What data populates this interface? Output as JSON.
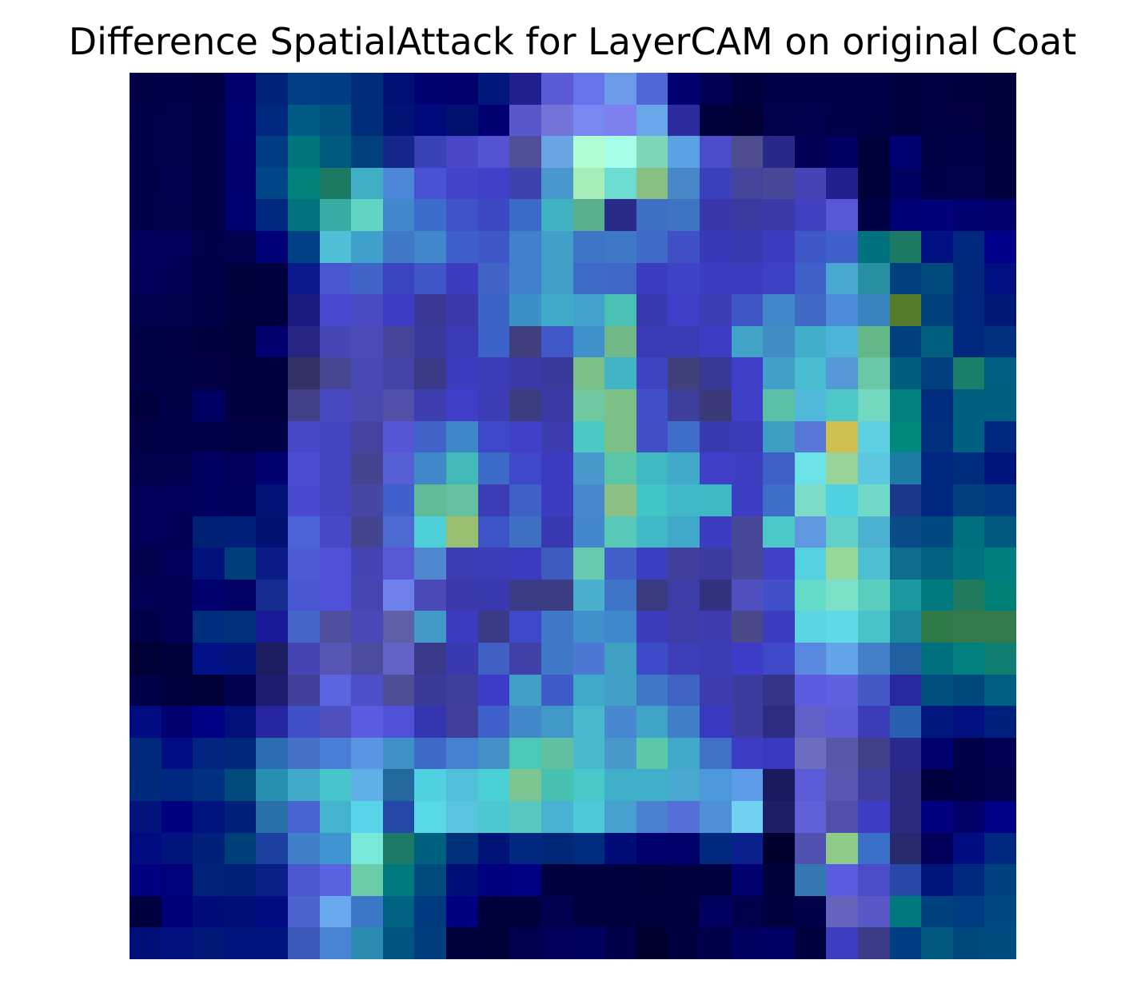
{
  "chart_data": {
    "type": "heatmap",
    "title": "Difference SpatialAttack for LayerCAM on original Coat",
    "xlabel": "",
    "ylabel": "",
    "axes_visible": false,
    "rows": 28,
    "cols": 28,
    "cells": [
      [
        "#000047",
        "#00004a",
        "#000042",
        "#000070",
        "#00237a",
        "#003f84",
        "#003d82",
        "#002c7a",
        "#000f75",
        "#000073",
        "#00006e",
        "#00197a",
        "#1f1f8f",
        "#5b5bd6",
        "#6575ea",
        "#6a9ae8",
        "#4e67d4",
        "#000070",
        "#000054",
        "#00003e",
        "#000048",
        "#00004a",
        "#00004a",
        "#000048",
        "#00003f",
        "#000043",
        "#000040",
        "#00003b"
      ],
      [
        "#00004a",
        "#00004d",
        "#000044",
        "#000073",
        "#00287e",
        "#005b85",
        "#005080",
        "#002d7a",
        "#001273",
        "#000a7d",
        "#00116f",
        "#000072",
        "#5858cc",
        "#7474d8",
        "#7788f2",
        "#7e80f0",
        "#69a6ec",
        "#2c2c9e",
        "#00003d",
        "#000034",
        "#00004c",
        "#000050",
        "#00004a",
        "#000046",
        "#00003f",
        "#000042",
        "#000042",
        "#00003b"
      ],
      [
        "#00004b",
        "#00004e",
        "#000044",
        "#000071",
        "#003d84",
        "#00757e",
        "#005a7e",
        "#00407c",
        "#14288c",
        "#3a42b8",
        "#4a48c8",
        "#5454d2",
        "#50509a",
        "#6aa4e4",
        "#b0ffd4",
        "#a6ffe8",
        "#7ed6b8",
        "#5aa2e2",
        "#4c4ccc",
        "#4c4c8e",
        "#282888",
        "#000054",
        "#000063",
        "#00003b",
        "#000074",
        "#000047",
        "#00004b",
        "#00003e"
      ],
      [
        "#00004b",
        "#000050",
        "#000044",
        "#000070",
        "#00478a",
        "#00817a",
        "#1c7a62",
        "#40aec4",
        "#4c88d8",
        "#4852d2",
        "#4444c8",
        "#4040c8",
        "#3e42b0",
        "#4898ce",
        "#a6ecb8",
        "#6cdcd0",
        "#88c084",
        "#4888c8",
        "#3c40be",
        "#44449a",
        "#484898",
        "#4444b6",
        "#20208e",
        "#00003a",
        "#000060",
        "#00004a",
        "#00004c",
        "#00003f"
      ],
      [
        "#00004b",
        "#00004f",
        "#000044",
        "#000073",
        "#00287e",
        "#00737e",
        "#38aca4",
        "#62d4c4",
        "#4288cc",
        "#3c6ccc",
        "#3e54c8",
        "#3c48c4",
        "#3c6ac8",
        "#3eb2c0",
        "#5ab08e",
        "#2a2a88",
        "#3e6ec6",
        "#3e72c2",
        "#3838ac",
        "#3a3aa2",
        "#3a3aa8",
        "#4040c0",
        "#5858d6",
        "#000045",
        "#000076",
        "#000078",
        "#000072",
        "#00006a"
      ],
      [
        "#00005c",
        "#000058",
        "#00004a",
        "#00004e",
        "#000077",
        "#004186",
        "#50bed4",
        "#40a0cc",
        "#4078c8",
        "#4286cc",
        "#3e5ecc",
        "#3e58c8",
        "#4080cc",
        "#40a0c8",
        "#4074c8",
        "#4078c8",
        "#406ac8",
        "#4050c6",
        "#3838b8",
        "#3a3ab0",
        "#3c3cc0",
        "#3e58c8",
        "#4060cc",
        "#00727e",
        "#1c7a64",
        "#001281",
        "#00287e",
        "#00008a"
      ],
      [
        "#000058",
        "#000054",
        "#000049",
        "#00003d",
        "#000041",
        "#0a1a8c",
        "#4858d0",
        "#4064c8",
        "#3c44c2",
        "#3e56c6",
        "#3c3cc0",
        "#4064c8",
        "#4080cc",
        "#40a0c8",
        "#406ac8",
        "#4068c8",
        "#3c3cc0",
        "#3e44c4",
        "#3c3cc0",
        "#3c3cc0",
        "#3e40c4",
        "#3e60c8",
        "#48a6d0",
        "#2890a0",
        "#00407e",
        "#004a7e",
        "#00287c",
        "#001080"
      ],
      [
        "#000050",
        "#00004f",
        "#000046",
        "#00003e",
        "#00003e",
        "#1a1a80",
        "#4848d0",
        "#4a4ac2",
        "#3c3cc4",
        "#383894",
        "#3a3aac",
        "#3c64c8",
        "#3c90c8",
        "#3eaac8",
        "#40a2cc",
        "#4ac0b4",
        "#3a3ab0",
        "#3e3ec8",
        "#3c3cb4",
        "#3e56c6",
        "#4088c8",
        "#4068c4",
        "#4c8cda",
        "#3a84c0",
        "#567a2c",
        "#00427e",
        "#00287e",
        "#001878"
      ],
      [
        "#000044",
        "#000042",
        "#000040",
        "#00003d",
        "#000071",
        "#262680",
        "#4646b6",
        "#4c4cb8",
        "#444498",
        "#3a3a9c",
        "#3a3ab4",
        "#3c64c8",
        "#40407e",
        "#4058c8",
        "#4090cc",
        "#70b888",
        "#3a3ab6",
        "#3a3ab4",
        "#3c3cc4",
        "#40a2c4",
        "#408cc4",
        "#40aec8",
        "#4cb4d8",
        "#64b888",
        "#004080",
        "#00607e",
        "#00287e",
        "#00307e"
      ],
      [
        "#000046",
        "#000044",
        "#000042",
        "#00003e",
        "#000040",
        "#323266",
        "#464694",
        "#4848b2",
        "#4242a8",
        "#3a3a88",
        "#3c3cc0",
        "#3c3cb8",
        "#3a3aa8",
        "#3a3a9c",
        "#7cc088",
        "#40b4c4",
        "#3e44c0",
        "#40407a",
        "#383896",
        "#3e3ec8",
        "#40a0c8",
        "#48bcd0",
        "#5498d8",
        "#6ac8a8",
        "#005d7e",
        "#00407e",
        "#1a7f6a",
        "#005f80"
      ],
      [
        "#000040",
        "#000046",
        "#000064",
        "#000040",
        "#00003f",
        "#40408a",
        "#4848c0",
        "#4848b0",
        "#5050a8",
        "#3e3eb0",
        "#3e3ec8",
        "#3c3cb4",
        "#3c3c80",
        "#3a3aa4",
        "#70c8a0",
        "#7cc088",
        "#4050c8",
        "#3e3e9c",
        "#3a3a78",
        "#3e3ec8",
        "#5cc0a8",
        "#50b8d8",
        "#4cc8c8",
        "#72d8c0",
        "#00807e",
        "#002c7e",
        "#00607e",
        "#006080"
      ],
      [
        "#000046",
        "#000049",
        "#00004a",
        "#000046",
        "#000046",
        "#4848c8",
        "#4444c0",
        "#4444a0",
        "#5656d4",
        "#4064c8",
        "#3e88c8",
        "#3e48c8",
        "#4040c8",
        "#3c3cb0",
        "#4cc8c4",
        "#7cc088",
        "#4050c4",
        "#3e6ec8",
        "#3a3ab0",
        "#3a3ab8",
        "#3e9ec4",
        "#5878d8",
        "#d0c050",
        "#5cd0e0",
        "#00887e",
        "#00307e",
        "#006080",
        "#002880"
      ],
      [
        "#00004c",
        "#00004f",
        "#000063",
        "#00005a",
        "#000073",
        "#4c4cd0",
        "#4444c0",
        "#444490",
        "#5660d4",
        "#4088c8",
        "#42b8b8",
        "#3c6ac8",
        "#3e48c8",
        "#3c3cc0",
        "#4898cc",
        "#58c4a8",
        "#40b8c4",
        "#40a8c8",
        "#3e3ec8",
        "#3e3ec0",
        "#3e60c8",
        "#6ae2e8",
        "#98d498",
        "#5cc8e0",
        "#1c7ca4",
        "#002880",
        "#002c7e",
        "#00147e"
      ],
      [
        "#000059",
        "#000058",
        "#000061",
        "#00005e",
        "#001276",
        "#4a4ad0",
        "#4444c0",
        "#4646a4",
        "#4060cc",
        "#60bc98",
        "#64c0a0",
        "#3c3cb6",
        "#3e60c8",
        "#3c3cc0",
        "#4888cc",
        "#8cc084",
        "#40c4c8",
        "#40b8c8",
        "#40b8c4",
        "#3e3ec4",
        "#3e6ec8",
        "#7cdcc8",
        "#50d0e0",
        "#72d8c8",
        "#1c388c",
        "#002880",
        "#00407e",
        "#003a80"
      ],
      [
        "#000058",
        "#000057",
        "#002076",
        "#00207a",
        "#001271",
        "#4c64d8",
        "#4848c8",
        "#444490",
        "#4c6cd4",
        "#4ecfd8",
        "#98c070",
        "#3c54c8",
        "#3e70c4",
        "#3838b0",
        "#4488cc",
        "#58c8b8",
        "#40b8c8",
        "#40a8c8",
        "#3c3cc0",
        "#484898",
        "#4cc8c8",
        "#6098e0",
        "#60d0c8",
        "#4cb0d0",
        "#0a4c88",
        "#004880",
        "#00707e",
        "#005880"
      ],
      [
        "#00004e",
        "#00005a",
        "#00127c",
        "#00407a",
        "#0a1c88",
        "#4c5cd4",
        "#5050d8",
        "#4444b4",
        "#5858d4",
        "#5088d0",
        "#3c3cb4",
        "#3c3cb8",
        "#3c3cc0",
        "#3c5cc0",
        "#68c8b0",
        "#4060c8",
        "#3c40c0",
        "#40409c",
        "#3a3aa2",
        "#484898",
        "#4040c8",
        "#54d0e0",
        "#98d898",
        "#4cc0d0",
        "#106c8c",
        "#006280",
        "#00747e",
        "#007e80"
      ],
      [
        "#000054",
        "#000054",
        "#000070",
        "#000065",
        "#162c90",
        "#4858d0",
        "#5050d8",
        "#4646b0",
        "#6e80ec",
        "#4a4ab8",
        "#3a3aac",
        "#3a3ab0",
        "#3c3c86",
        "#3c3c84",
        "#48b0cc",
        "#4074c8",
        "#3a3a7e",
        "#3e3ea8",
        "#323280",
        "#5050c0",
        "#4050c8",
        "#62dcc8",
        "#7ce0c8",
        "#5acfc0",
        "#1c98a0",
        "#007a7e",
        "#207a5e",
        "#008076"
      ],
      [
        "#000048",
        "#000057",
        "#002e7e",
        "#00307a",
        "#1a1a98",
        "#4466c8",
        "#5050a0",
        "#4848b8",
        "#6060a8",
        "#4498c8",
        "#3c3cc0",
        "#3a3a88",
        "#3e48c8",
        "#4078c8",
        "#4090cc",
        "#4088cc",
        "#3c3cbc",
        "#3e3ea8",
        "#3c3cb0",
        "#4a4a8a",
        "#3c3cc0",
        "#5ad4e0",
        "#60d8e8",
        "#48c4c8",
        "#1c88a0",
        "#307a4a",
        "#347a4c",
        "#347a4c"
      ],
      [
        "#000036",
        "#00003c",
        "#001286",
        "#00147c",
        "#1c1c60",
        "#4444b4",
        "#5656b4",
        "#4c4ca0",
        "#6262c8",
        "#3a3a8c",
        "#3a3ab0",
        "#4060c4",
        "#4040a8",
        "#4078c8",
        "#4c78d4",
        "#40a0c4",
        "#3c4cc8",
        "#3e3eb8",
        "#3c3cb4",
        "#3c3cc8",
        "#3e48c8",
        "#5888e0",
        "#62a4e8",
        "#4480c8",
        "#2060a0",
        "#00707e",
        "#00807e",
        "#107e72"
      ],
      [
        "#000048",
        "#00003e",
        "#000037",
        "#000052",
        "#1c1c70",
        "#40409a",
        "#5c64e0",
        "#4e4ec8",
        "#4e4e98",
        "#3a3a98",
        "#3e3e9c",
        "#3c3cc8",
        "#40a0c8",
        "#3e5cc8",
        "#40a8c8",
        "#40a0c8",
        "#4078c8",
        "#4064c4",
        "#3c3cb0",
        "#3c3ca0",
        "#343488",
        "#5c5ce0",
        "#6060e0",
        "#4258c4",
        "#2828a0",
        "#004e7e",
        "#00487e",
        "#005f80"
      ],
      [
        "#000c80",
        "#000070",
        "#000086",
        "#00117a",
        "#2626a0",
        "#4050c8",
        "#5050c0",
        "#5c5ce0",
        "#5050d8",
        "#3434b0",
        "#40409c",
        "#4060cc",
        "#4088c8",
        "#4098c8",
        "#48b8cc",
        "#4888d0",
        "#40a4c8",
        "#4080c8",
        "#3838c0",
        "#3c3ca0",
        "#2c2c80",
        "#6060c8",
        "#5c5cd8",
        "#3c3cb8",
        "#2a60b0",
        "#001880",
        "#001080",
        "#00207e"
      ],
      [
        "#00287c",
        "#000c84",
        "#002480",
        "#00287a",
        "#2a6cb0",
        "#4670c8",
        "#4a7ed6",
        "#5a94e4",
        "#4090c8",
        "#3c6ac4",
        "#4680d0",
        "#4690c8",
        "#4cc8b8",
        "#60c0a0",
        "#48b8cc",
        "#4898cc",
        "#5cc8a8",
        "#40a8c8",
        "#4070c8",
        "#3c3cc4",
        "#3838c0",
        "#6c6cc0",
        "#5858a8",
        "#404088",
        "#282890",
        "#000070",
        "#000048",
        "#000055"
      ],
      [
        "#002a7c",
        "#002880",
        "#003080",
        "#004a7e",
        "#2890b0",
        "#40aac8",
        "#48c4cc",
        "#60b0e8",
        "#2468a0",
        "#50d0e0",
        "#50c0d8",
        "#4ad0d4",
        "#7cc490",
        "#48c0b0",
        "#48c8c8",
        "#40b0c8",
        "#40b0c8",
        "#48a8d0",
        "#4c98d8",
        "#5c9ce8",
        "#1a1a60",
        "#5c5cd8",
        "#5858b0",
        "#3e3ea0",
        "#2a2a80",
        "#000040",
        "#000046",
        "#00004d"
      ],
      [
        "#00147c",
        "#000080",
        "#001480",
        "#00207a",
        "#2870a8",
        "#4864d0",
        "#44b4cc",
        "#58d4e8",
        "#2448a8",
        "#58d8e4",
        "#58c4e0",
        "#4cc8d0",
        "#58c8c0",
        "#48b0d0",
        "#4cc8d8",
        "#48a0d0",
        "#4c80d0",
        "#5470d8",
        "#4e90d8",
        "#70d0f0",
        "#1e1e68",
        "#6060d8",
        "#5050a8",
        "#3c3cc4",
        "#2a2a80",
        "#000080",
        "#000068",
        "#000086"
      ],
      [
        "#000c80",
        "#00147e",
        "#00207a",
        "#00407a",
        "#1c40a0",
        "#4080c8",
        "#4094d0",
        "#78e8d8",
        "#1c7a66",
        "#006080",
        "#00307a",
        "#001478",
        "#002880",
        "#002878",
        "#002c80",
        "#000c78",
        "#00006e",
        "#00006a",
        "#002a80",
        "#0a208c",
        "#000030",
        "#5050b0",
        "#8ccc88",
        "#3a70c8",
        "#28286c",
        "#00005a",
        "#000c80",
        "#00287e"
      ],
      [
        "#000080",
        "#00007a",
        "#002278",
        "#002078",
        "#0a2088",
        "#4c58d0",
        "#5a64e0",
        "#6ccca8",
        "#007a7e",
        "#004a7e",
        "#000e78",
        "#000080",
        "#000082",
        "#000040",
        "#000040",
        "#000040",
        "#00003a",
        "#000040",
        "#000040",
        "#000070",
        "#00003a",
        "#3478b4",
        "#5c5ce0",
        "#4c4cc8",
        "#2848a8",
        "#00147e",
        "#00287e",
        "#004280"
      ],
      [
        "#000040",
        "#000078",
        "#000c7a",
        "#001078",
        "#000c80",
        "#4c64d0",
        "#68a8ec",
        "#3c78c8",
        "#006282",
        "#003a7e",
        "#000080",
        "#00003c",
        "#00003c",
        "#000050",
        "#000040",
        "#00003e",
        "#00003e",
        "#000040",
        "#000060",
        "#00004c",
        "#000040",
        "#000048",
        "#6464bc",
        "#5858c8",
        "#007880",
        "#00427e",
        "#003c80",
        "#004880"
      ],
      [
        "#000e78",
        "#00107e",
        "#001878",
        "#001480",
        "#001480",
        "#3a58b8",
        "#4a84d4",
        "#2a8cb0",
        "#005580",
        "#003e7e",
        "#00003c",
        "#000038",
        "#000050",
        "#00005a",
        "#00005e",
        "#00004a",
        "#000030",
        "#000040",
        "#000048",
        "#000060",
        "#000064",
        "#000040",
        "#3e3ec0",
        "#3c3c88",
        "#003e84",
        "#005880",
        "#00487e",
        "#004c80"
      ]
    ]
  }
}
